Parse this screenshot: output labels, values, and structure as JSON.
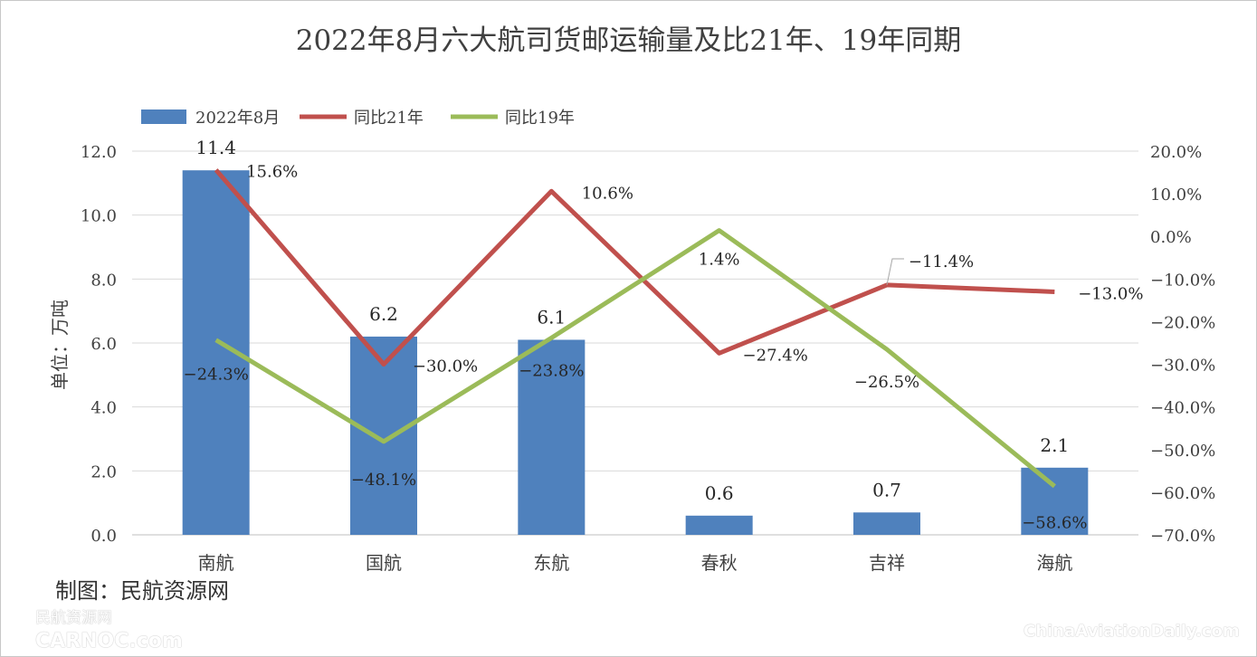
{
  "chart_data": {
    "type": "bar+line",
    "title": "2022年8月六大航司货邮运输量及比21年、19年同期",
    "categories": [
      "南航",
      "国航",
      "东航",
      "春秋",
      "吉祥",
      "海航"
    ],
    "ylabel": "单位：万吨",
    "ylim": [
      0,
      12
    ],
    "y_ticks": [
      "0.0",
      "2.0",
      "4.0",
      "6.0",
      "8.0",
      "10.0",
      "12.0"
    ],
    "y2lim": [
      -70,
      20
    ],
    "y2_ticks": [
      "-70.0%",
      "-60.0%",
      "-50.0%",
      "-40.0%",
      "-30.0%",
      "-20.0%",
      "-10.0%",
      "0.0%",
      "10.0%",
      "20.0%"
    ],
    "grid": true,
    "legend_position": "top-left",
    "series": [
      {
        "name": "2022年8月",
        "type": "bar",
        "axis": "left",
        "color": "#4f81bd",
        "values": [
          11.4,
          6.2,
          6.1,
          0.6,
          0.7,
          2.1
        ],
        "labels": [
          "11.4",
          "6.2",
          "6.1",
          "0.6",
          "0.7",
          "2.1"
        ]
      },
      {
        "name": "同比21年",
        "type": "line",
        "axis": "right",
        "color": "#c0504d",
        "values": [
          15.6,
          -30.0,
          10.6,
          -27.4,
          -11.4,
          -13.0
        ],
        "labels": [
          "15.6%",
          "-30.0%",
          "10.6%",
          "-27.4%",
          "-11.4%",
          "-13.0%"
        ]
      },
      {
        "name": "同比19年",
        "type": "line",
        "axis": "right",
        "color": "#9bbb59",
        "values": [
          -24.3,
          -48.1,
          -23.8,
          1.4,
          -26.5,
          -58.6
        ],
        "labels": [
          "-24.3%",
          "-48.1%",
          "-23.8%",
          "1.4%",
          "-26.5%",
          "-58.6%"
        ]
      }
    ]
  },
  "source": "制图：民航资源网",
  "watermarks": {
    "left_cn": "民航资源网",
    "left_en": "CARNOC.com",
    "right": "ChinaAviationDaily.com"
  }
}
